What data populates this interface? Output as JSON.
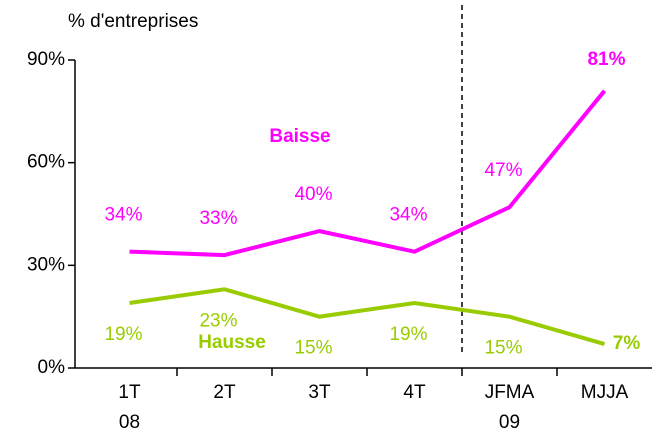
{
  "chart_data": {
    "type": "line",
    "y_label": "% d'entreprises",
    "categories": [
      "1T\n08",
      "2T",
      "3T",
      "4T",
      "JFMA\n09",
      "MJJA"
    ],
    "series": [
      {
        "name": "Baisse",
        "color": "#ff00ff",
        "values": [
          34,
          33,
          40,
          34,
          47,
          81
        ],
        "value_labels": [
          "34%",
          "33%",
          "40%",
          "34%",
          "47%",
          "81%"
        ]
      },
      {
        "name": "Hausse",
        "color": "#99cc00",
        "values": [
          19,
          23,
          15,
          19,
          15,
          7
        ],
        "value_labels": [
          "19%",
          "23%",
          "15%",
          "19%",
          "15%",
          "7%"
        ]
      }
    ],
    "ylim": [
      0,
      90
    ],
    "yticks": [
      {
        "value": 0,
        "label": "0%"
      },
      {
        "value": 30,
        "label": "30%"
      },
      {
        "value": 60,
        "label": "60%"
      },
      {
        "value": 90,
        "label": "90%"
      }
    ]
  }
}
